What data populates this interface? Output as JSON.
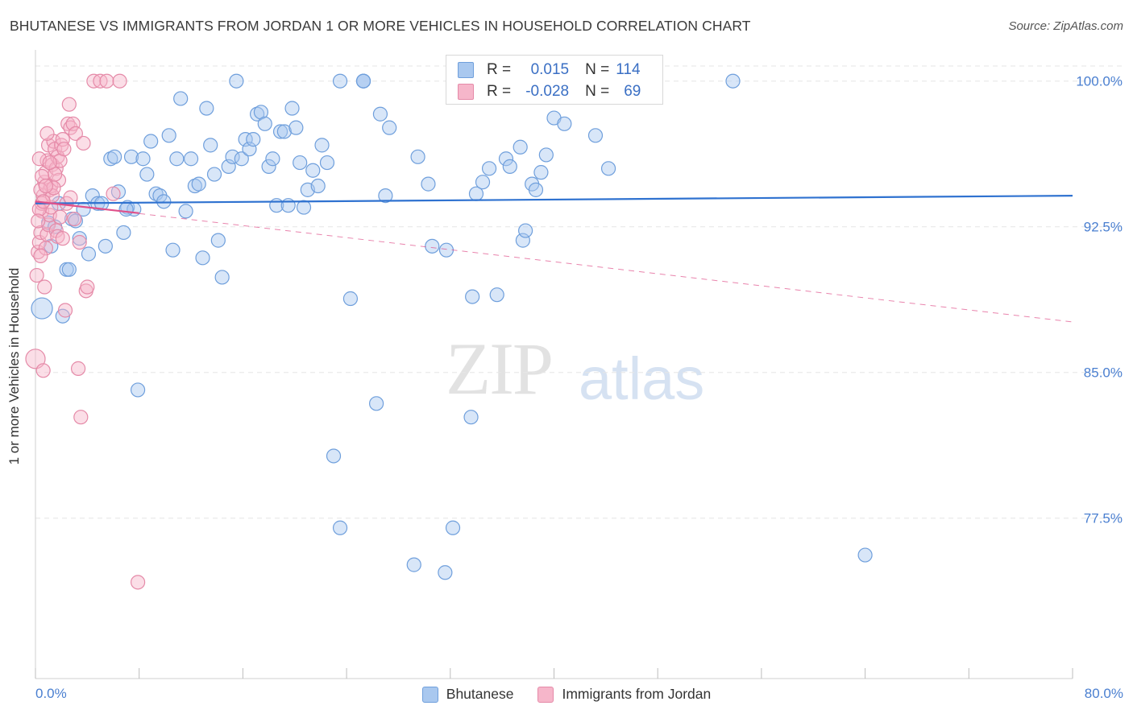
{
  "title": "BHUTANESE VS IMMIGRANTS FROM JORDAN 1 OR MORE VEHICLES IN HOUSEHOLD CORRELATION CHART",
  "source": "Source: ZipAtlas.com",
  "watermark": {
    "zip": "ZIP",
    "atlas": "atlas"
  },
  "legend_top": {
    "rows": [
      {
        "r_label": "R =",
        "r_value": "0.015",
        "n_label": "N =",
        "n_value": "114"
      },
      {
        "r_label": "R =",
        "r_value": "-0.028",
        "n_label": "N =",
        "n_value": "69"
      }
    ]
  },
  "legend_bottom": {
    "series1": "Bhutanese",
    "series2": "Immigrants from Jordan"
  },
  "colors": {
    "blue_fill": "#a9c8ef",
    "blue_stroke": "#6f9fdc",
    "blue_line": "#2f72d0",
    "pink_fill": "#f6b6ca",
    "pink_stroke": "#e58aa8",
    "pink_line": "#e0508a",
    "axis_label": "#4a7fd0",
    "grid": "#e6e6e6"
  },
  "chart_data": {
    "type": "scatter",
    "title": "BHUTANESE VS IMMIGRANTS FROM JORDAN 1 OR MORE VEHICLES IN HOUSEHOLD CORRELATION CHART",
    "xlabel": "",
    "ylabel": "1 or more Vehicles in Household",
    "xlim": [
      0,
      80
    ],
    "ylim": [
      69.2,
      100.9
    ],
    "x_tick_labels": [
      {
        "value": 0,
        "label": "0.0%"
      },
      {
        "value": 80,
        "label": "80.0%"
      }
    ],
    "y_ticks": [
      {
        "value": 100.0,
        "label": "100.0%"
      },
      {
        "value": 92.5,
        "label": "92.5%"
      },
      {
        "value": 85.0,
        "label": "85.0%"
      },
      {
        "value": 77.5,
        "label": "77.5%"
      }
    ],
    "series": [
      {
        "name": "Bhutanese",
        "color": "#a9c8ef",
        "trend": {
          "x": [
            0,
            80
          ],
          "y": [
            93.7,
            94.1
          ],
          "style": "solid"
        },
        "points": [
          [
            0.5,
            88.3
          ],
          [
            1.0,
            92.7
          ],
          [
            1.2,
            91.5
          ],
          [
            1.5,
            92.5
          ],
          [
            1.8,
            93.7
          ],
          [
            2.1,
            87.9
          ],
          [
            2.4,
            90.3
          ],
          [
            2.8,
            92.9
          ],
          [
            3.1,
            92.8
          ],
          [
            3.4,
            91.9
          ],
          [
            3.7,
            93.4
          ],
          [
            4.1,
            91.1
          ],
          [
            4.4,
            94.1
          ],
          [
            4.8,
            93.7
          ],
          [
            5.1,
            93.7
          ],
          [
            5.4,
            91.5
          ],
          [
            5.8,
            96.0
          ],
          [
            6.1,
            96.1
          ],
          [
            6.4,
            94.3
          ],
          [
            6.8,
            92.2
          ],
          [
            7.1,
            93.5
          ],
          [
            7.4,
            96.1
          ],
          [
            7.6,
            93.4
          ],
          [
            7.9,
            84.1
          ],
          [
            8.3,
            96.0
          ],
          [
            8.6,
            95.2
          ],
          [
            8.9,
            96.9
          ],
          [
            9.3,
            94.2
          ],
          [
            9.6,
            94.1
          ],
          [
            9.9,
            93.8
          ],
          [
            10.3,
            97.2
          ],
          [
            10.6,
            91.3
          ],
          [
            10.9,
            96.0
          ],
          [
            11.2,
            99.1
          ],
          [
            11.6,
            93.3
          ],
          [
            12.0,
            96.0
          ],
          [
            12.3,
            94.6
          ],
          [
            12.6,
            94.7
          ],
          [
            12.9,
            90.9
          ],
          [
            13.2,
            98.6
          ],
          [
            13.5,
            96.7
          ],
          [
            13.8,
            95.2
          ],
          [
            14.1,
            91.8
          ],
          [
            14.4,
            89.9
          ],
          [
            14.9,
            95.6
          ],
          [
            15.2,
            96.1
          ],
          [
            15.5,
            100.0
          ],
          [
            15.9,
            96.0
          ],
          [
            16.2,
            97.0
          ],
          [
            16.5,
            96.5
          ],
          [
            16.8,
            97.0
          ],
          [
            17.1,
            98.3
          ],
          [
            17.4,
            98.4
          ],
          [
            17.7,
            97.8
          ],
          [
            18.0,
            95.6
          ],
          [
            18.3,
            96.0
          ],
          [
            18.6,
            93.6
          ],
          [
            18.9,
            97.4
          ],
          [
            19.2,
            97.4
          ],
          [
            19.5,
            93.6
          ],
          [
            19.8,
            98.6
          ],
          [
            20.1,
            97.6
          ],
          [
            20.4,
            95.8
          ],
          [
            20.7,
            93.5
          ],
          [
            21.0,
            94.4
          ],
          [
            21.4,
            95.4
          ],
          [
            21.8,
            94.6
          ],
          [
            22.1,
            96.7
          ],
          [
            22.5,
            95.8
          ],
          [
            23.0,
            80.7
          ],
          [
            23.5,
            100.0
          ],
          [
            23.5,
            77.0
          ],
          [
            24.3,
            88.8
          ],
          [
            25.3,
            100.0
          ],
          [
            25.3,
            100.0
          ],
          [
            26.3,
            83.4
          ],
          [
            26.6,
            98.3
          ],
          [
            27.0,
            94.1
          ],
          [
            27.3,
            97.6
          ],
          [
            29.2,
            75.1
          ],
          [
            29.5,
            96.1
          ],
          [
            30.3,
            94.7
          ],
          [
            30.6,
            91.5
          ],
          [
            31.6,
            74.7
          ],
          [
            31.7,
            91.3
          ],
          [
            32.2,
            77.0
          ],
          [
            33.6,
            82.7
          ],
          [
            33.7,
            88.9
          ],
          [
            34.0,
            94.2
          ],
          [
            34.5,
            94.8
          ],
          [
            35.0,
            95.5
          ],
          [
            35.6,
            89.0
          ],
          [
            36.3,
            96.0
          ],
          [
            36.6,
            95.6
          ],
          [
            37.4,
            96.6
          ],
          [
            37.6,
            91.8
          ],
          [
            37.8,
            92.3
          ],
          [
            38.3,
            94.7
          ],
          [
            38.6,
            94.4
          ],
          [
            39.0,
            95.3
          ],
          [
            39.4,
            96.2
          ],
          [
            40.0,
            98.1
          ],
          [
            40.8,
            97.8
          ],
          [
            42.0,
            100.0
          ],
          [
            43.2,
            97.2
          ],
          [
            43.5,
            100.0
          ],
          [
            44.2,
            95.5
          ],
          [
            47.0,
            100.0
          ],
          [
            53.8,
            100.0
          ],
          [
            64.0,
            75.6
          ],
          [
            33.4,
            100.0
          ],
          [
            25.3,
            100.0
          ],
          [
            7.0,
            93.4
          ],
          [
            2.6,
            90.3
          ]
        ]
      },
      {
        "name": "Immigrants from Jordan",
        "color": "#f6b6ca",
        "trend": {
          "x": [
            0,
            8
          ],
          "y": [
            93.8,
            93.2
          ],
          "style": "solid",
          "extended": {
            "x": [
              0,
              80
            ],
            "y": [
              93.8,
              87.6
            ],
            "style": "dashed"
          }
        },
        "points": [
          [
            0.0,
            85.7
          ],
          [
            0.1,
            90.0
          ],
          [
            0.2,
            91.2
          ],
          [
            0.3,
            91.7
          ],
          [
            0.4,
            92.2
          ],
          [
            0.5,
            93.3
          ],
          [
            0.5,
            93.7
          ],
          [
            0.6,
            94.1
          ],
          [
            0.7,
            94.8
          ],
          [
            0.8,
            95.3
          ],
          [
            0.9,
            95.9
          ],
          [
            1.0,
            96.7
          ],
          [
            1.1,
            94.4
          ],
          [
            1.2,
            94.6
          ],
          [
            1.3,
            95.7
          ],
          [
            1.4,
            96.9
          ],
          [
            1.5,
            96.5
          ],
          [
            1.6,
            95.5
          ],
          [
            1.7,
            96.1
          ],
          [
            1.8,
            94.9
          ],
          [
            1.9,
            95.9
          ],
          [
            2.0,
            96.7
          ],
          [
            2.1,
            97.0
          ],
          [
            2.2,
            96.5
          ],
          [
            2.3,
            88.2
          ],
          [
            2.5,
            97.8
          ],
          [
            2.6,
            98.8
          ],
          [
            2.7,
            97.6
          ],
          [
            2.9,
            97.8
          ],
          [
            3.1,
            97.3
          ],
          [
            3.3,
            85.2
          ],
          [
            3.5,
            82.7
          ],
          [
            3.7,
            96.8
          ],
          [
            3.9,
            89.2
          ],
          [
            4.0,
            89.4
          ],
          [
            4.5,
            100.0
          ],
          [
            5.0,
            100.0
          ],
          [
            5.5,
            100.0
          ],
          [
            6.0,
            94.2
          ],
          [
            6.5,
            100.0
          ],
          [
            7.9,
            74.2
          ],
          [
            0.6,
            85.1
          ],
          [
            0.7,
            89.4
          ],
          [
            0.8,
            91.4
          ],
          [
            0.9,
            92.1
          ],
          [
            1.0,
            92.6
          ],
          [
            1.1,
            93.1
          ],
          [
            1.2,
            93.5
          ],
          [
            1.3,
            94.1
          ],
          [
            1.4,
            94.5
          ],
          [
            1.5,
            95.2
          ],
          [
            1.6,
            92.3
          ],
          [
            1.7,
            92.0
          ],
          [
            1.9,
            93.0
          ],
          [
            2.1,
            91.9
          ],
          [
            2.4,
            93.7
          ],
          [
            2.7,
            94.0
          ],
          [
            3.0,
            92.9
          ],
          [
            3.4,
            91.7
          ],
          [
            0.3,
            93.4
          ],
          [
            0.4,
            94.4
          ],
          [
            0.5,
            95.1
          ],
          [
            0.2,
            92.8
          ],
          [
            0.3,
            96.0
          ],
          [
            0.4,
            91.0
          ],
          [
            0.6,
            93.8
          ],
          [
            0.8,
            94.6
          ],
          [
            1.1,
            95.8
          ],
          [
            0.9,
            97.3
          ]
        ]
      }
    ]
  }
}
